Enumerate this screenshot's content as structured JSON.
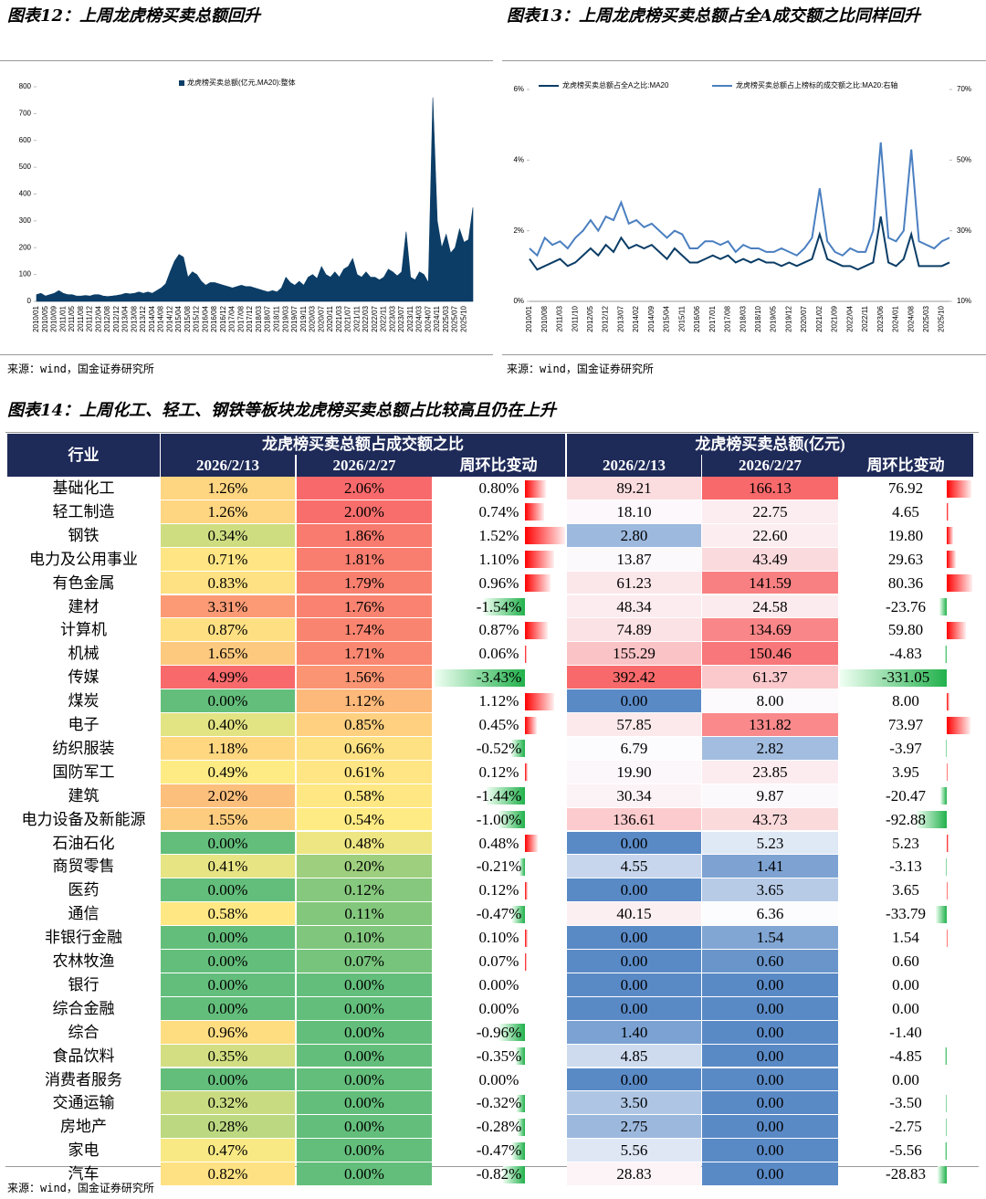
{
  "chart_data": [
    {
      "type": "area",
      "title": "图表12：上周龙虎榜买卖总额回升",
      "source": "来源：wind，国金证券研究所",
      "categories": [
        "2010/01",
        null,
        "2010/05",
        null,
        "2010/09",
        null,
        "2011/01",
        null,
        "2011/05",
        null,
        "2011/08",
        null,
        "2011/12",
        null,
        "2012/04",
        null,
        "2012/08",
        null,
        "2012/12",
        null,
        "2013/04",
        null,
        "2013/08",
        null,
        "2013/12",
        null,
        "2014/04",
        null,
        "2014/08",
        null,
        "2014/12",
        null,
        "2015/04",
        null,
        "2015/08",
        null,
        "2015/12",
        null,
        "2016/04",
        null,
        "2016/08",
        null,
        "2016/12",
        null,
        "2017/04",
        null,
        "2017/08",
        null,
        "2017/12",
        null,
        "2018/03",
        null,
        "2018/07",
        null,
        "2018/11",
        null,
        "2019/03",
        null,
        "2019/07",
        null,
        "2019/11",
        null,
        "2020/03",
        null,
        "2020/07",
        null,
        "2020/11",
        null,
        "2021/03",
        null,
        "2021/07",
        null,
        "2021/11",
        null,
        "2022/03",
        null,
        "2022/07",
        null,
        "2022/11",
        null,
        "2023/03",
        null,
        "2023/07",
        null,
        "2023/11",
        null,
        "2024/03",
        null,
        "2024/07",
        null,
        "2024/11",
        null,
        "2025/03",
        null,
        "2025/07",
        null,
        "2025/10",
        null,
        null
      ],
      "series": [
        {
          "name": "龙虎榜买卖总额(亿元,MA20):整体",
          "color": "#0b3d66",
          "values": [
            25,
            30,
            20,
            25,
            30,
            40,
            30,
            25,
            25,
            20,
            20,
            22,
            20,
            25,
            25,
            20,
            18,
            20,
            22,
            25,
            30,
            28,
            30,
            35,
            30,
            35,
            30,
            40,
            50,
            65,
            110,
            150,
            175,
            165,
            90,
            110,
            100,
            75,
            60,
            70,
            70,
            65,
            60,
            55,
            50,
            55,
            60,
            55,
            55,
            50,
            45,
            40,
            35,
            40,
            35,
            50,
            90,
            70,
            60,
            75,
            60,
            90,
            100,
            85,
            130,
            100,
            90,
            110,
            90,
            120,
            130,
            160,
            100,
            90,
            110,
            90,
            90,
            80,
            90,
            120,
            110,
            95,
            110,
            260,
            90,
            80,
            110,
            100,
            70,
            760,
            300,
            200,
            250,
            180,
            200,
            270,
            220,
            230,
            350
          ]
        }
      ],
      "ylim": [
        0,
        800
      ],
      "yticks": [
        0,
        100,
        200,
        300,
        400,
        500,
        600,
        700,
        800
      ],
      "grid": false,
      "legend": "top"
    },
    {
      "type": "line",
      "title": "图表13：上周龙虎榜买卖总额占全A成交额之比同样回升",
      "source": "来源：wind，国金证券研究所",
      "categories": [
        "2010/01",
        null,
        "2010/08",
        null,
        "2011/03",
        null,
        "2011/10",
        null,
        "2012/05",
        null,
        "2012/12",
        null,
        "2013/07",
        null,
        "2014/02",
        null,
        "2014/09",
        null,
        "2015/04",
        null,
        "2015/11",
        null,
        "2016/06",
        null,
        "2017/01",
        null,
        "2017/08",
        null,
        "2018/03",
        null,
        "2018/10",
        null,
        "2019/05",
        null,
        "2019/12",
        null,
        "2020/07",
        null,
        "2021/02",
        null,
        "2021/09",
        null,
        "2022/04",
        null,
        "2022/11",
        null,
        "2023/06",
        null,
        "2024/01",
        null,
        "2024/08",
        null,
        "2025/03",
        null,
        "2025/10",
        null
      ],
      "series": [
        {
          "name": "龙虎榜买卖总额占全A之比:MA20",
          "color": "#0b3d66",
          "values": [
            1.2,
            0.9,
            1.0,
            1.1,
            1.2,
            1.0,
            1.1,
            1.3,
            1.5,
            1.3,
            1.6,
            1.4,
            1.8,
            1.5,
            1.6,
            1.5,
            1.6,
            1.4,
            1.2,
            1.5,
            1.3,
            1.1,
            1.1,
            1.2,
            1.3,
            1.2,
            1.3,
            1.1,
            1.2,
            1.1,
            1.2,
            1.1,
            1.1,
            1.0,
            1.1,
            1.0,
            1.1,
            1.2,
            1.9,
            1.2,
            1.1,
            1.0,
            1.0,
            0.9,
            1.0,
            1.1,
            2.4,
            1.1,
            1.0,
            1.2,
            1.9,
            1.0,
            1.0,
            1.0,
            1.0,
            1.1
          ]
        },
        {
          "name": "龙虎榜买卖总额占上榜标的成交额之比:MA20:右轴",
          "color": "#4a7fc0",
          "axis": "y2",
          "values": [
            25,
            23,
            28,
            26,
            27,
            25,
            28,
            30,
            33,
            30,
            34,
            33,
            38,
            32,
            33,
            31,
            32,
            30,
            28,
            30,
            29,
            25,
            25,
            27,
            27,
            26,
            27,
            24,
            26,
            25,
            25,
            24,
            24,
            25,
            24,
            23,
            25,
            28,
            42,
            27,
            24,
            23,
            25,
            24,
            24,
            30,
            55,
            28,
            27,
            30,
            53,
            27,
            26,
            25,
            27,
            28
          ]
        }
      ],
      "ylim": [
        0,
        6
      ],
      "yticks": [
        {
          "value": 0,
          "label": "0%"
        },
        {
          "value": 2,
          "label": "2%"
        },
        {
          "value": 4,
          "label": "4%"
        },
        {
          "value": 6,
          "label": "6%"
        }
      ],
      "y2lim": [
        10,
        70
      ],
      "y2ticks": [
        {
          "value": 10,
          "label": "10%"
        },
        {
          "value": 30,
          "label": "30%"
        },
        {
          "value": 50,
          "label": "50%"
        },
        {
          "value": 70,
          "label": "70%"
        }
      ],
      "grid": false,
      "legend": "top"
    }
  ],
  "table": {
    "title": "图表14：上周化工、轻工、钢铁等板块龙虎榜买卖总额占比较高且仍在上升",
    "first_header": "行业",
    "groups": [
      {
        "name": "龙虎榜买卖总额占成交额之比",
        "columns": [
          "2026/2/13",
          "2026/2/27",
          "周环比变动"
        ]
      },
      {
        "name": "龙虎榜买卖总额(亿元)",
        "columns": [
          "2026/2/13",
          "2026/2/27",
          "周环比变动"
        ]
      }
    ],
    "rows": [
      [
        "基础化工",
        "1.26%",
        "2.06%",
        "0.80%",
        "89.21",
        "166.13",
        "76.92"
      ],
      [
        "轻工制造",
        "1.26%",
        "2.00%",
        "0.74%",
        "18.10",
        "22.75",
        "4.65"
      ],
      [
        "钢铁",
        "0.34%",
        "1.86%",
        "1.52%",
        "2.80",
        "22.60",
        "19.80"
      ],
      [
        "电力及公用事业",
        "0.71%",
        "1.81%",
        "1.10%",
        "13.87",
        "43.49",
        "29.63"
      ],
      [
        "有色金属",
        "0.83%",
        "1.79%",
        "0.96%",
        "61.23",
        "141.59",
        "80.36"
      ],
      [
        "建材",
        "3.31%",
        "1.76%",
        "-1.54%",
        "48.34",
        "24.58",
        "-23.76"
      ],
      [
        "计算机",
        "0.87%",
        "1.74%",
        "0.87%",
        "74.89",
        "134.69",
        "59.80"
      ],
      [
        "机械",
        "1.65%",
        "1.71%",
        "0.06%",
        "155.29",
        "150.46",
        "-4.83"
      ],
      [
        "传媒",
        "4.99%",
        "1.56%",
        "-3.43%",
        "392.42",
        "61.37",
        "-331.05"
      ],
      [
        "煤炭",
        "0.00%",
        "1.12%",
        "1.12%",
        "0.00",
        "8.00",
        "8.00"
      ],
      [
        "电子",
        "0.40%",
        "0.85%",
        "0.45%",
        "57.85",
        "131.82",
        "73.97"
      ],
      [
        "纺织服装",
        "1.18%",
        "0.66%",
        "-0.52%",
        "6.79",
        "2.82",
        "-3.97"
      ],
      [
        "国防军工",
        "0.49%",
        "0.61%",
        "0.12%",
        "19.90",
        "23.85",
        "3.95"
      ],
      [
        "建筑",
        "2.02%",
        "0.58%",
        "-1.44%",
        "30.34",
        "9.87",
        "-20.47"
      ],
      [
        "电力设备及新能源",
        "1.55%",
        "0.54%",
        "-1.00%",
        "136.61",
        "43.73",
        "-92.88"
      ],
      [
        "石油石化",
        "0.00%",
        "0.48%",
        "0.48%",
        "0.00",
        "5.23",
        "5.23"
      ],
      [
        "商贸零售",
        "0.41%",
        "0.20%",
        "-0.21%",
        "4.55",
        "1.41",
        "-3.13"
      ],
      [
        "医药",
        "0.00%",
        "0.12%",
        "0.12%",
        "0.00",
        "3.65",
        "3.65"
      ],
      [
        "通信",
        "0.58%",
        "0.11%",
        "-0.47%",
        "40.15",
        "6.36",
        "-33.79"
      ],
      [
        "非银行金融",
        "0.00%",
        "0.10%",
        "0.10%",
        "0.00",
        "1.54",
        "1.54"
      ],
      [
        "农林牧渔",
        "0.00%",
        "0.07%",
        "0.07%",
        "0.00",
        "0.60",
        "0.60"
      ],
      [
        "银行",
        "0.00%",
        "0.00%",
        "0.00%",
        "0.00",
        "0.00",
        "0.00"
      ],
      [
        "综合金融",
        "0.00%",
        "0.00%",
        "0.00%",
        "0.00",
        "0.00",
        "0.00"
      ],
      [
        "综合",
        "0.96%",
        "0.00%",
        "-0.96%",
        "1.40",
        "0.00",
        "-1.40"
      ],
      [
        "食品饮料",
        "0.35%",
        "0.00%",
        "-0.35%",
        "4.85",
        "0.00",
        "-4.85"
      ],
      [
        "消费者服务",
        "0.00%",
        "0.00%",
        "0.00%",
        "0.00",
        "0.00",
        "0.00"
      ],
      [
        "交通运输",
        "0.32%",
        "0.00%",
        "-0.32%",
        "3.50",
        "0.00",
        "-3.50"
      ],
      [
        "房地产",
        "0.28%",
        "0.00%",
        "-0.28%",
        "2.75",
        "0.00",
        "-2.75"
      ],
      [
        "家电",
        "0.47%",
        "0.00%",
        "-0.47%",
        "5.56",
        "0.00",
        "-5.56"
      ],
      [
        "汽车",
        "0.82%",
        "0.00%",
        "-0.82%",
        "28.83",
        "0.00",
        "-28.83"
      ]
    ],
    "source": "来源：wind，国金证券研究所"
  }
}
